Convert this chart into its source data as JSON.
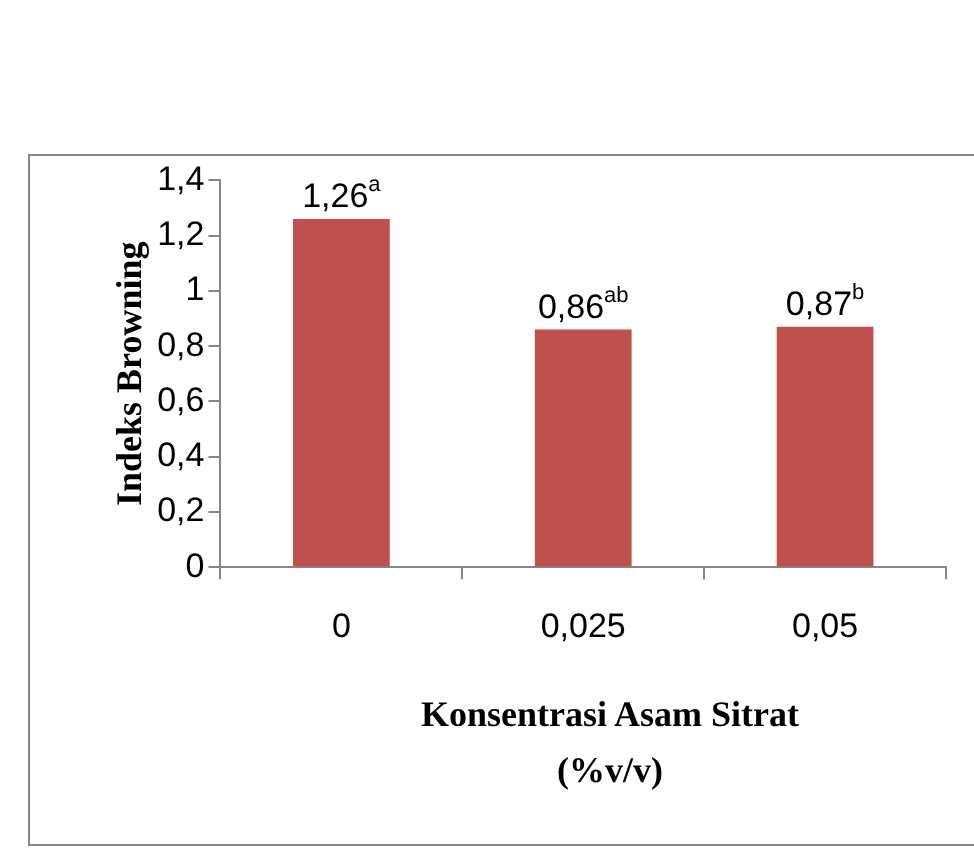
{
  "chart_data": {
    "type": "bar",
    "xlabel": "Konsentrasi Asam Sitrat (%v/v)",
    "ylabel": "Indeks Browning",
    "categories": [
      "0",
      "0,025",
      "0,05"
    ],
    "values": [
      1.26,
      0.86,
      0.87
    ],
    "value_labels": [
      "1,26$^{a}$",
      "0,86$^{ab}$",
      "0,87$^{b}$"
    ],
    "color": "#c0504d",
    "ylim": [
      0,
      1.4
    ],
    "yticks": [
      0,
      {
        "value": 0.2,
        "label": "0,2"
      },
      {
        "value": 0.4,
        "label": "0,4"
      },
      {
        "value": 0.6,
        "label": "0,6"
      },
      {
        "value": 0.8,
        "label": "0,8"
      },
      1,
      {
        "value": 1.2,
        "label": "1,2"
      },
      {
        "value": 1.4,
        "label": "1,4"
      }
    ]
  }
}
